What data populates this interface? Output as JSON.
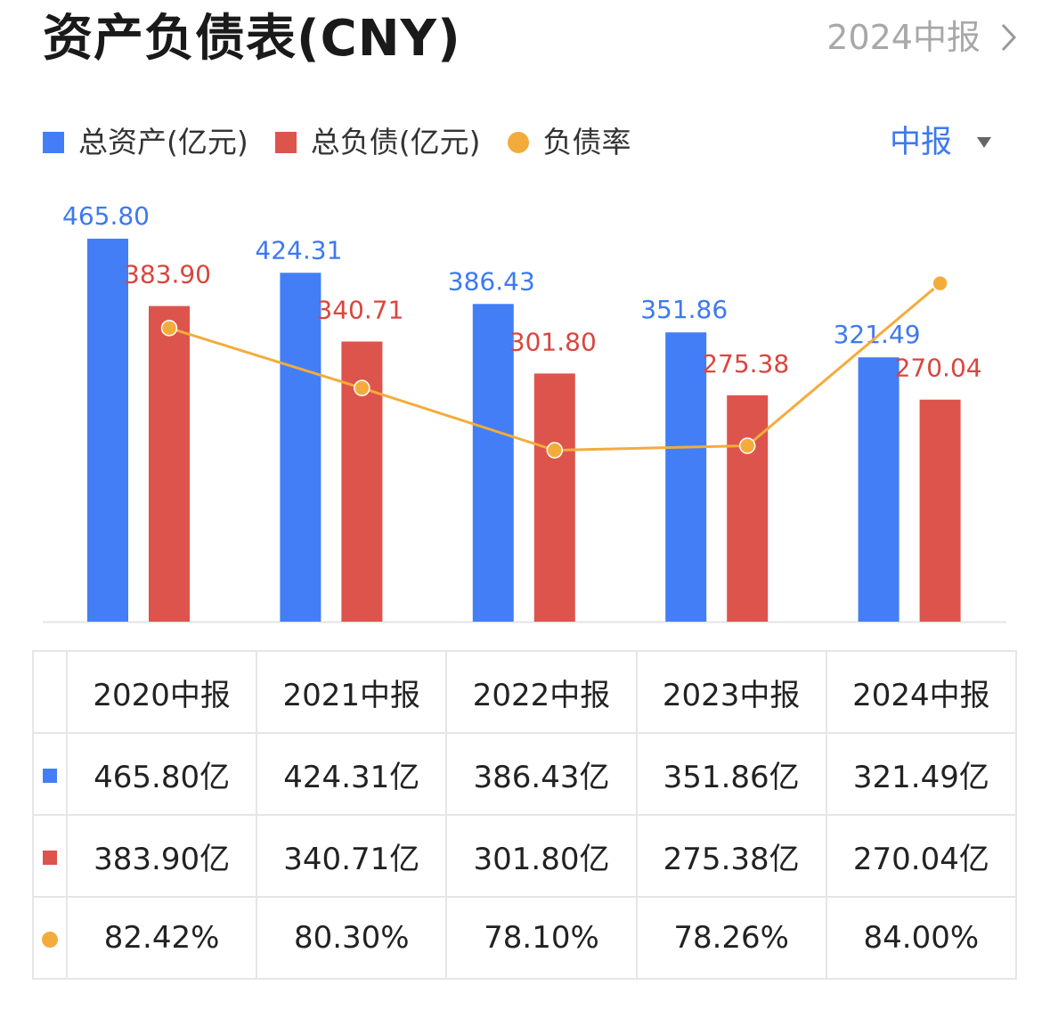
{
  "header": {
    "title": "资产负债表(CNY)",
    "period_link": "2024中报"
  },
  "period_select": {
    "label": "中报"
  },
  "colors": {
    "assets": "#437ef6",
    "liabilities": "#dd544c",
    "ratio": "#f3ac3c",
    "assets_label": "#3d79f0",
    "liabilities_label": "#d9463f",
    "axis": "#e5e5e5"
  },
  "legend": {
    "assets": "总资产(亿元)",
    "liabilities": "总负债(亿元)",
    "ratio": "负债率"
  },
  "chart_data": {
    "type": "bar",
    "title": "资产负债表(CNY)",
    "categories": [
      "2020中报",
      "2021中报",
      "2022中报",
      "2023中报",
      "2024中报"
    ],
    "series": [
      {
        "name": "总资产(亿元)",
        "type": "bar",
        "values": [
          465.8,
          424.31,
          386.43,
          351.86,
          321.49
        ],
        "labels": [
          "465.80",
          "424.31",
          "386.43",
          "351.86",
          "321.49"
        ]
      },
      {
        "name": "总负债(亿元)",
        "type": "bar",
        "values": [
          383.9,
          340.71,
          301.8,
          275.38,
          270.04
        ],
        "labels": [
          "383.90",
          "340.71",
          "301.80",
          "275.38",
          "270.04"
        ]
      },
      {
        "name": "负债率",
        "type": "line",
        "values": [
          82.42,
          80.3,
          78.1,
          78.26,
          84.0
        ]
      }
    ],
    "ylim": [
      0,
      465.8
    ],
    "ratio_ylim": [
      72.04,
      85.58
    ],
    "legend": "top-left",
    "grid": false
  },
  "table": {
    "columns": [
      "2020中报",
      "2021中报",
      "2022中报",
      "2023中报",
      "2024中报"
    ],
    "rows": [
      {
        "values": [
          "465.80亿",
          "424.31亿",
          "386.43亿",
          "351.86亿",
          "321.49亿"
        ]
      },
      {
        "values": [
          "383.90亿",
          "340.71亿",
          "301.80亿",
          "275.38亿",
          "270.04亿"
        ]
      },
      {
        "values": [
          "82.42%",
          "80.30%",
          "78.10%",
          "78.26%",
          "84.00%"
        ]
      }
    ]
  }
}
